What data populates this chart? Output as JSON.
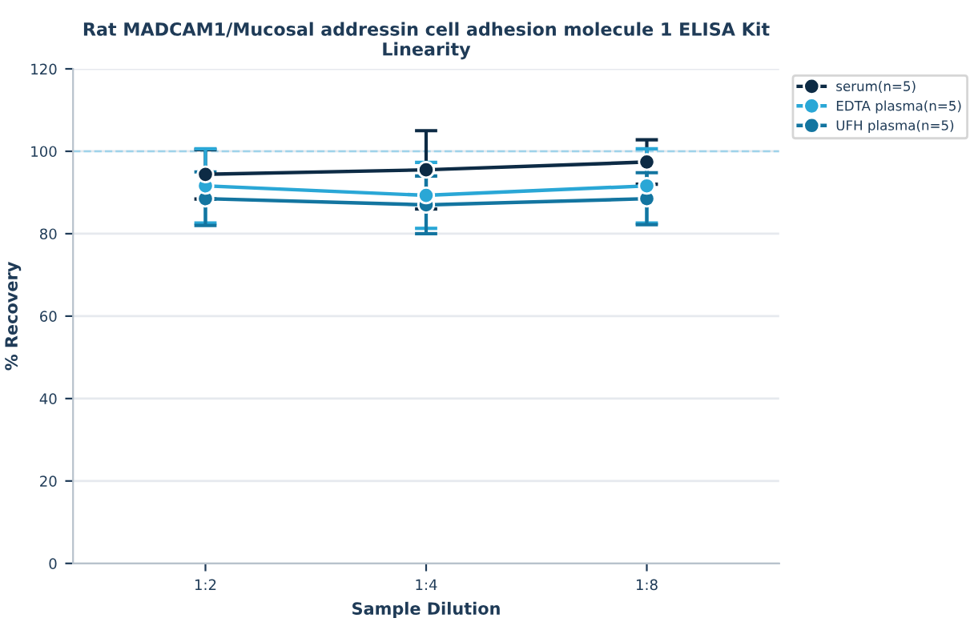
{
  "chart_data": {
    "type": "line",
    "title": "Rat MADCAM1/Mucosal addressin cell adhesion molecule 1 ELISA Kit\nLinearity",
    "xlabel": "Sample Dilution",
    "ylabel": "% Recovery",
    "categories": [
      "1:2",
      "1:4",
      "1:8"
    ],
    "series": [
      {
        "name": "serum(n=5)",
        "color": "#0d2b45",
        "values": [
          94.4,
          95.5,
          97.4
        ],
        "errors": [
          6,
          9.5,
          5.4
        ]
      },
      {
        "name": "EDTA plasma(n=5)",
        "color": "#2aa7d6",
        "values": [
          91.6,
          89.3,
          91.6
        ],
        "errors": [
          9,
          8,
          9
        ]
      },
      {
        "name": "UFH plasma(n=5)",
        "color": "#1375a0",
        "values": [
          88.5,
          87,
          88.5
        ],
        "errors": [
          6.5,
          7,
          6.3
        ]
      }
    ],
    "ylim": [
      0,
      120
    ],
    "yticks": [
      0,
      20,
      40,
      60,
      80,
      100,
      120
    ],
    "ref_lines": [
      {
        "axis": "y",
        "value": 100,
        "color": "#9fd3ea",
        "line_style": "dashed"
      }
    ],
    "grid": "y",
    "legend": "top right",
    "marker": "circle",
    "line_style": "solid"
  }
}
